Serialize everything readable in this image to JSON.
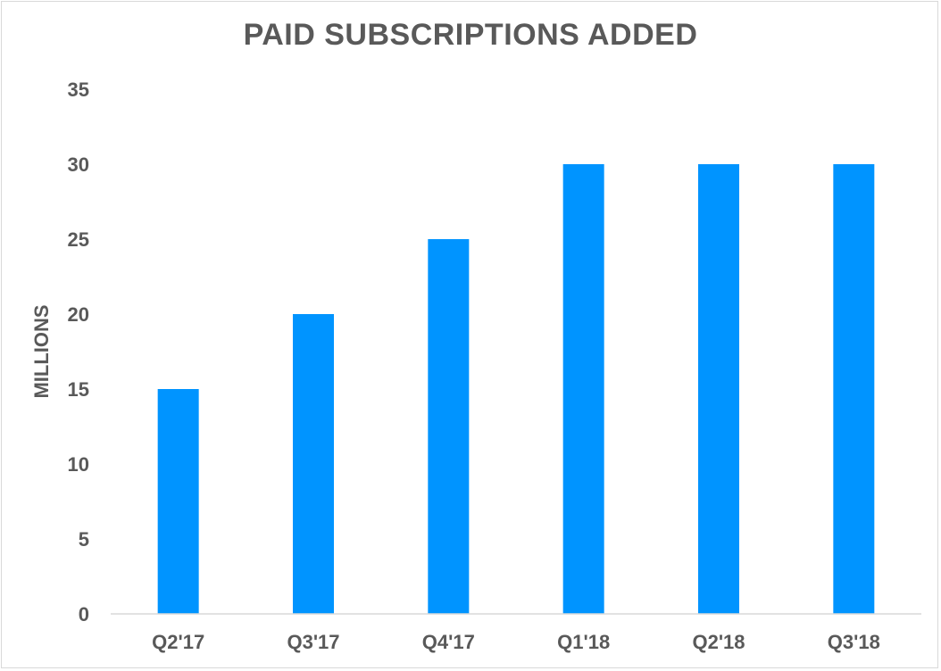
{
  "chart_data": {
    "type": "bar",
    "title": "PAID SUBSCRIPTIONS ADDED",
    "xlabel": "",
    "ylabel": "MILLIONS",
    "categories": [
      "Q2'17",
      "Q3'17",
      "Q4'17",
      "Q1'18",
      "Q2'18",
      "Q3'18"
    ],
    "values": [
      15,
      20,
      25,
      30,
      30,
      30
    ],
    "ylim": [
      0,
      35
    ],
    "yticks": [
      0,
      5,
      10,
      15,
      20,
      25,
      30,
      35
    ],
    "grid": false,
    "legend": "none",
    "bar_color": "#0094FF",
    "text_color": "#595959",
    "axis_color": "#d9d9d9"
  }
}
